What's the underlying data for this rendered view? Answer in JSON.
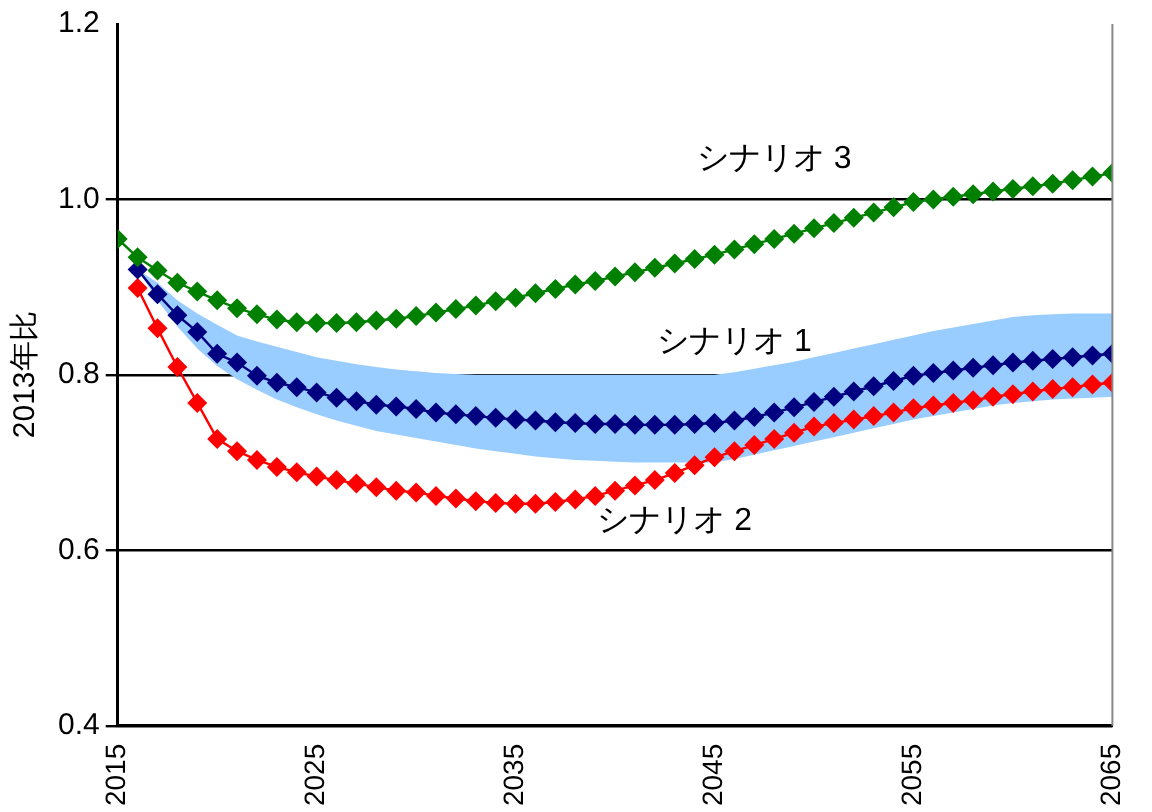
{
  "chart_data": {
    "type": "line",
    "ylabel": "2013年比",
    "x": [
      2016,
      2017,
      2018,
      2019,
      2020,
      2021,
      2022,
      2023,
      2024,
      2025,
      2026,
      2027,
      2028,
      2029,
      2030,
      2031,
      2032,
      2033,
      2034,
      2035,
      2036,
      2037,
      2038,
      2039,
      2040,
      2041,
      2042,
      2043,
      2044,
      2045,
      2046,
      2047,
      2048,
      2049,
      2050,
      2051,
      2052,
      2053,
      2054,
      2055,
      2056,
      2057,
      2058,
      2059,
      2060,
      2061,
      2062,
      2063,
      2064,
      2065
    ],
    "series": [
      {
        "color": "#008000",
        "x": [
          2015,
          2016,
          2017,
          2018,
          2019,
          2020,
          2021,
          2022,
          2023,
          2024,
          2025,
          2026,
          2027,
          2028,
          2029,
          2030,
          2031,
          2032,
          2033,
          2034,
          2035,
          2036,
          2037,
          2038,
          2039,
          2040,
          2041,
          2042,
          2043,
          2044,
          2045,
          2046,
          2047,
          2048,
          2049,
          2050,
          2051,
          2052,
          2053,
          2054,
          2055,
          2056,
          2057,
          2058,
          2059,
          2060,
          2061,
          2062,
          2063,
          2064,
          2065
        ],
        "name": "シナリオ 3",
        "values": [
          0.955,
          0.934,
          0.919,
          0.905,
          0.895,
          0.885,
          0.876,
          0.869,
          0.863,
          0.86,
          0.859,
          0.859,
          0.86,
          0.862,
          0.864,
          0.867,
          0.871,
          0.875,
          0.879,
          0.884,
          0.888,
          0.893,
          0.898,
          0.903,
          0.907,
          0.912,
          0.917,
          0.922,
          0.927,
          0.932,
          0.937,
          0.943,
          0.949,
          0.955,
          0.961,
          0.967,
          0.973,
          0.979,
          0.985,
          0.991,
          0.997,
          1.0,
          1.003,
          1.006,
          1.009,
          1.012,
          1.015,
          1.018,
          1.022,
          1.026,
          1.03
        ]
      },
      {
        "color": "#000080",
        "name": "シナリオ 1",
        "values": [
          0.92,
          0.892,
          0.868,
          0.849,
          0.824,
          0.814,
          0.799,
          0.791,
          0.786,
          0.78,
          0.774,
          0.77,
          0.766,
          0.764,
          0.761,
          0.757,
          0.755,
          0.753,
          0.751,
          0.749,
          0.748,
          0.746,
          0.745,
          0.744,
          0.744,
          0.743,
          0.743,
          0.743,
          0.744,
          0.745,
          0.748,
          0.752,
          0.757,
          0.763,
          0.769,
          0.775,
          0.781,
          0.787,
          0.793,
          0.799,
          0.802,
          0.805,
          0.808,
          0.811,
          0.814,
          0.816,
          0.818,
          0.82,
          0.822,
          0.824
        ],
        "upper": [
          0.92,
          0.905,
          0.885,
          0.87,
          0.857,
          0.845,
          0.838,
          0.832,
          0.826,
          0.82,
          0.816,
          0.812,
          0.809,
          0.806,
          0.804,
          0.802,
          0.801,
          0.8,
          0.8,
          0.8,
          0.8,
          0.8,
          0.8,
          0.8,
          0.8,
          0.8,
          0.8,
          0.8,
          0.8,
          0.8,
          0.803,
          0.807,
          0.811,
          0.815,
          0.82,
          0.825,
          0.83,
          0.835,
          0.84,
          0.845,
          0.85,
          0.854,
          0.858,
          0.862,
          0.866,
          0.868,
          0.869,
          0.87,
          0.87,
          0.87
        ],
        "lower": [
          0.92,
          0.885,
          0.855,
          0.83,
          0.81,
          0.795,
          0.783,
          0.772,
          0.763,
          0.755,
          0.748,
          0.742,
          0.736,
          0.732,
          0.728,
          0.724,
          0.72,
          0.716,
          0.713,
          0.71,
          0.707,
          0.705,
          0.703,
          0.702,
          0.701,
          0.7,
          0.7,
          0.7,
          0.7,
          0.7,
          0.704,
          0.709,
          0.714,
          0.719,
          0.724,
          0.729,
          0.734,
          0.739,
          0.744,
          0.749,
          0.753,
          0.757,
          0.761,
          0.765,
          0.768,
          0.77,
          0.772,
          0.773,
          0.774,
          0.775
        ]
      },
      {
        "color": "#ff0000",
        "name": "シナリオ 2",
        "values": [
          0.899,
          0.853,
          0.809,
          0.768,
          0.727,
          0.713,
          0.703,
          0.695,
          0.689,
          0.684,
          0.68,
          0.676,
          0.672,
          0.668,
          0.666,
          0.662,
          0.659,
          0.656,
          0.654,
          0.653,
          0.653,
          0.655,
          0.658,
          0.662,
          0.668,
          0.674,
          0.68,
          0.688,
          0.697,
          0.706,
          0.713,
          0.72,
          0.727,
          0.734,
          0.741,
          0.745,
          0.749,
          0.753,
          0.757,
          0.762,
          0.765,
          0.768,
          0.771,
          0.775,
          0.778,
          0.781,
          0.784,
          0.786,
          0.789,
          0.791
        ]
      }
    ],
    "xlim": [
      2015,
      2065
    ],
    "xticks": [
      2015,
      2025,
      2035,
      2045,
      2055,
      2065
    ],
    "ylim": [
      0.4,
      1.2
    ],
    "yticks": [
      {
        "value": 0.4,
        "label": "0.4"
      },
      {
        "value": 0.6,
        "label": "0.6"
      },
      {
        "value": 0.8,
        "label": "0.8"
      },
      {
        "value": 1.0,
        "label": "1.0"
      },
      {
        "value": 1.2,
        "label": "1.2"
      }
    ],
    "grid": "y",
    "legend": false,
    "marker": "diamond",
    "line_style": "solid"
  }
}
